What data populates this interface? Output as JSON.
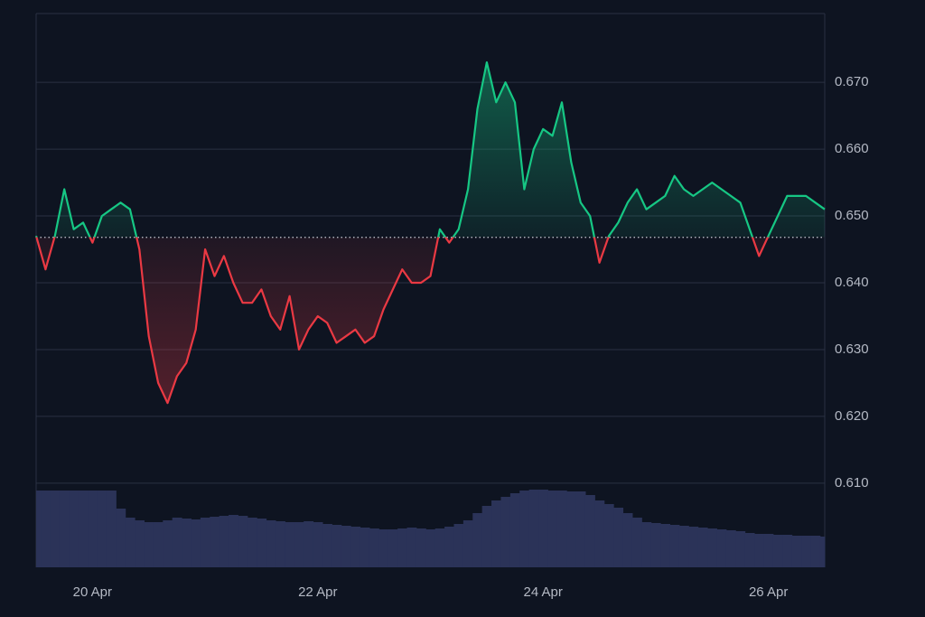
{
  "chart_data": {
    "type": "baseline",
    "baseline": 0.6468,
    "up_color": "#16c784",
    "down_color": "#ea3943",
    "volume_color": "#2b3358",
    "grid": true,
    "xlim": [
      0,
      84
    ],
    "xticks": [
      {
        "value": 6,
        "label": "20 Apr"
      },
      {
        "value": 30,
        "label": "22 Apr"
      },
      {
        "value": 54,
        "label": "24 Apr"
      },
      {
        "value": 78,
        "label": "26 Apr"
      }
    ],
    "ylim": [
      0.5974,
      0.6803
    ],
    "yticks": [
      {
        "value": 0.61,
        "label": "0.610"
      },
      {
        "value": 0.62,
        "label": "0.620"
      },
      {
        "value": 0.63,
        "label": "0.630"
      },
      {
        "value": 0.64,
        "label": "0.640"
      },
      {
        "value": 0.65,
        "label": "0.650"
      },
      {
        "value": 0.66,
        "label": "0.660"
      },
      {
        "value": 0.67,
        "label": "0.670"
      }
    ],
    "volume_lim": [
      0,
      100
    ],
    "values": [
      0.647,
      0.642,
      0.647,
      0.654,
      0.648,
      0.649,
      0.646,
      0.65,
      0.651,
      0.652,
      0.651,
      0.645,
      0.632,
      0.625,
      0.622,
      0.626,
      0.628,
      0.633,
      0.645,
      0.641,
      0.644,
      0.64,
      0.637,
      0.637,
      0.639,
      0.635,
      0.633,
      0.638,
      0.63,
      0.633,
      0.635,
      0.634,
      0.631,
      0.632,
      0.633,
      0.631,
      0.632,
      0.636,
      0.639,
      0.642,
      0.64,
      0.64,
      0.641,
      0.648,
      0.646,
      0.648,
      0.654,
      0.666,
      0.673,
      0.667,
      0.67,
      0.667,
      0.654,
      0.66,
      0.663,
      0.662,
      0.667,
      0.658,
      0.652,
      0.65,
      0.643,
      0.647,
      0.649,
      0.652,
      0.654,
      0.651,
      0.652,
      0.653,
      0.656,
      0.654,
      0.653,
      0.654,
      0.655,
      0.654,
      0.653,
      0.652,
      0.648,
      0.644,
      0.647,
      0.65,
      0.653,
      0.653,
      0.653,
      0.652,
      0.651
    ],
    "volume": [
      85,
      85,
      85,
      85,
      85,
      85,
      85,
      85,
      85,
      65,
      55,
      52,
      50,
      50,
      52,
      55,
      54,
      53,
      55,
      56,
      57,
      58,
      57,
      55,
      54,
      52,
      51,
      50,
      50,
      51,
      50,
      48,
      47,
      46,
      45,
      44,
      43,
      42,
      42,
      43,
      44,
      43,
      42,
      43,
      45,
      48,
      52,
      60,
      68,
      74,
      78,
      82,
      85,
      86,
      86,
      85,
      85,
      84,
      84,
      80,
      74,
      70,
      66,
      60,
      55,
      50,
      49,
      48,
      47,
      46,
      45,
      44,
      43,
      42,
      41,
      40,
      38,
      37,
      37,
      36,
      36,
      35,
      35,
      35,
      34
    ]
  }
}
